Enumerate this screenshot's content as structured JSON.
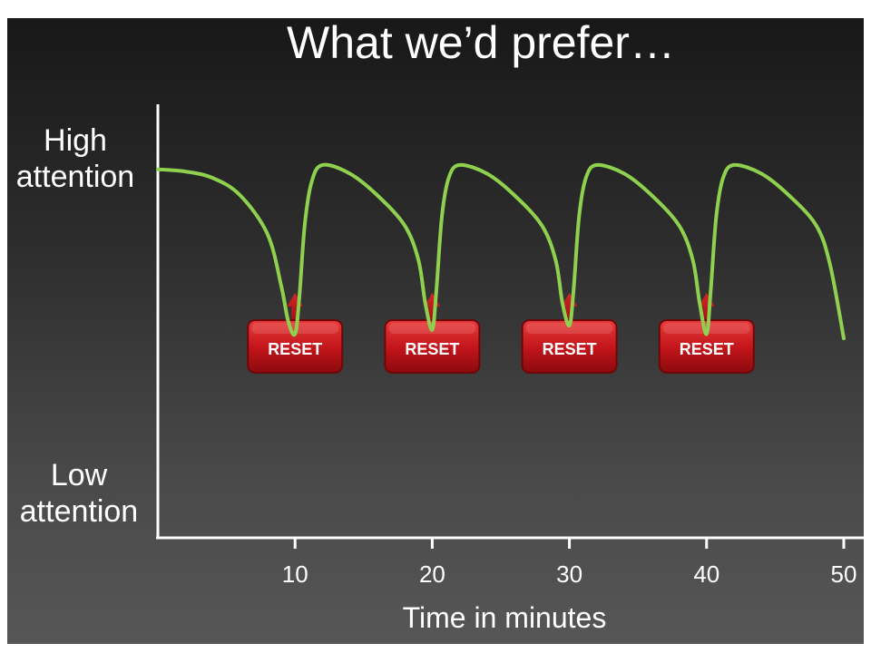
{
  "title": "What we’d prefer…",
  "chart_data": {
    "type": "line",
    "title": "What we’d prefer…",
    "xlabel": "Time in minutes",
    "ylabel_top": [
      "High",
      "attention"
    ],
    "ylabel_bottom": [
      "Low",
      "attention"
    ],
    "x_ticks": [
      10,
      20,
      30,
      40,
      50
    ],
    "xlim": [
      0,
      50
    ],
    "ylim": [
      0,
      100
    ],
    "series": [
      {
        "color": "#8fd14f",
        "x": [
          0,
          2,
          4,
          6,
          8,
          9,
          9.5,
          10,
          10.3,
          10.7,
          11.2,
          12,
          14,
          16,
          18,
          19,
          19.5,
          20,
          20.3,
          20.7,
          21.2,
          22,
          24,
          26,
          28,
          29,
          29.5,
          30,
          30.3,
          30.7,
          31.2,
          32,
          34,
          36,
          38,
          39,
          39.5,
          40,
          40.3,
          40.7,
          41.2,
          42,
          44,
          46,
          48,
          49,
          50
        ],
        "y": [
          85,
          84.5,
          83,
          79,
          70,
          58,
          50,
          47,
          55,
          72,
          82,
          86,
          84,
          79,
          72,
          64,
          54,
          48,
          57,
          74,
          83,
          86,
          84,
          79,
          72,
          64,
          54,
          49,
          57,
          74,
          83,
          86,
          84,
          79,
          72,
          64,
          54,
          47,
          57,
          74,
          83,
          86,
          84,
          79,
          72,
          63,
          46
        ]
      }
    ],
    "annotations": [
      {
        "x": 10,
        "label": "RESET"
      },
      {
        "x": 20,
        "label": "RESET"
      },
      {
        "x": 30,
        "label": "RESET"
      },
      {
        "x": 40,
        "label": "RESET"
      }
    ]
  }
}
